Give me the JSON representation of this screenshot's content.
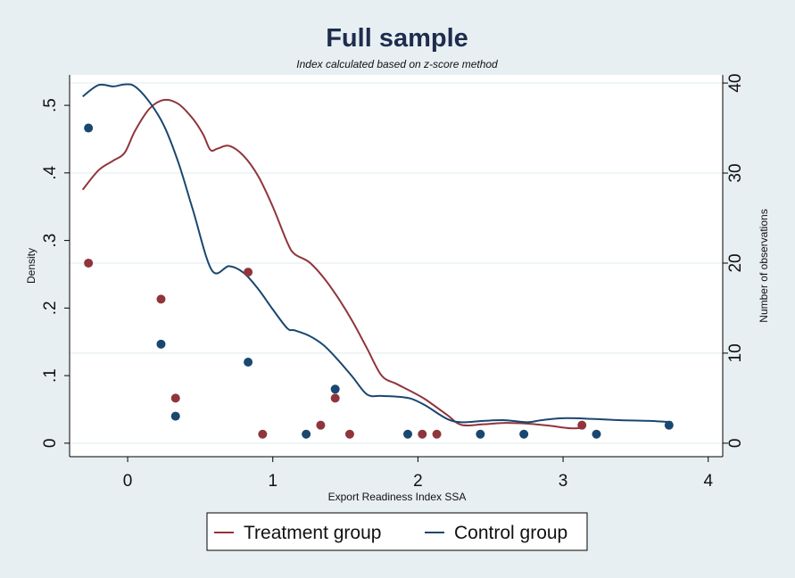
{
  "chart_data": {
    "type": "line",
    "title": "Full sample",
    "subtitle": "Index calculated based on z-score method",
    "xlabel": "Export Readiness Index SSA",
    "ylabel": "Density",
    "y2label": "Number of observations",
    "xlim": [
      -0.4,
      4.1
    ],
    "ylim": [
      -0.02,
      0.545
    ],
    "y2lim": [
      -1.5,
      40.9
    ],
    "xticks": [
      "0",
      "1",
      "2",
      "3",
      "4"
    ],
    "yticks": [
      "0",
      ".1",
      ".2",
      ".3",
      ".4",
      ".5"
    ],
    "y2ticks": [
      "0",
      "10",
      "20",
      "30",
      "40"
    ],
    "grid": "horizontal at right-axis ticks",
    "legend_position": "bottom-center",
    "colors": {
      "treatment": "#90353b",
      "control": "#1a476f",
      "background": "#e8eff3",
      "plot_background": "#ffffff",
      "grid": "#eaf2f3"
    },
    "legend": {
      "treatment_label": "Treatment group",
      "control_label": "Control group"
    },
    "density_series": [
      {
        "name": "Treatment group",
        "color": "#90353b",
        "x": [
          -0.31,
          -0.2,
          -0.1,
          -0.02,
          0.05,
          0.15,
          0.25,
          0.35,
          0.45,
          0.52,
          0.57,
          0.62,
          0.7,
          0.8,
          0.9,
          1.0,
          1.1,
          1.15,
          1.25,
          1.35,
          1.45,
          1.55,
          1.65,
          1.75,
          1.85,
          1.95,
          2.05,
          2.2,
          2.3,
          2.45,
          2.6,
          2.75,
          2.9,
          3.05,
          3.15
        ],
        "y": [
          0.375,
          0.404,
          0.418,
          0.43,
          0.462,
          0.495,
          0.508,
          0.502,
          0.48,
          0.457,
          0.434,
          0.436,
          0.44,
          0.425,
          0.395,
          0.35,
          0.297,
          0.28,
          0.268,
          0.245,
          0.215,
          0.18,
          0.14,
          0.1,
          0.088,
          0.077,
          0.065,
          0.042,
          0.027,
          0.028,
          0.03,
          0.029,
          0.026,
          0.022,
          0.023
        ]
      },
      {
        "name": "Control group",
        "color": "#1a476f",
        "x": [
          -0.31,
          -0.2,
          -0.1,
          -0.02,
          0.05,
          0.15,
          0.25,
          0.35,
          0.45,
          0.58,
          0.7,
          0.8,
          0.9,
          1.0,
          1.1,
          1.15,
          1.25,
          1.35,
          1.45,
          1.55,
          1.65,
          1.75,
          1.85,
          1.95,
          2.05,
          2.2,
          2.3,
          2.45,
          2.6,
          2.75,
          2.85,
          3.0,
          3.2,
          3.4,
          3.6,
          3.75
        ],
        "y": [
          0.513,
          0.53,
          0.528,
          0.531,
          0.528,
          0.505,
          0.47,
          0.415,
          0.345,
          0.256,
          0.262,
          0.252,
          0.228,
          0.198,
          0.17,
          0.167,
          0.159,
          0.145,
          0.123,
          0.098,
          0.072,
          0.07,
          0.069,
          0.066,
          0.056,
          0.036,
          0.031,
          0.033,
          0.034,
          0.031,
          0.034,
          0.037,
          0.036,
          0.034,
          0.033,
          0.031
        ]
      }
    ],
    "observation_series": [
      {
        "name": "Treatment group",
        "color": "#90353b",
        "x": [
          -0.27,
          0.23,
          0.33,
          0.83,
          0.93,
          1.33,
          1.43,
          1.53,
          2.03,
          2.13,
          3.13
        ],
        "y": [
          20,
          16,
          5,
          19,
          1,
          2,
          5,
          1,
          1,
          1,
          2
        ]
      },
      {
        "name": "Control group",
        "color": "#1a476f",
        "x": [
          -0.27,
          0.23,
          0.33,
          0.83,
          1.23,
          1.43,
          1.93,
          2.43,
          2.73,
          3.23,
          3.73
        ],
        "y": [
          35,
          11,
          3,
          9,
          1,
          6,
          1,
          1,
          1,
          1,
          2
        ]
      }
    ]
  }
}
